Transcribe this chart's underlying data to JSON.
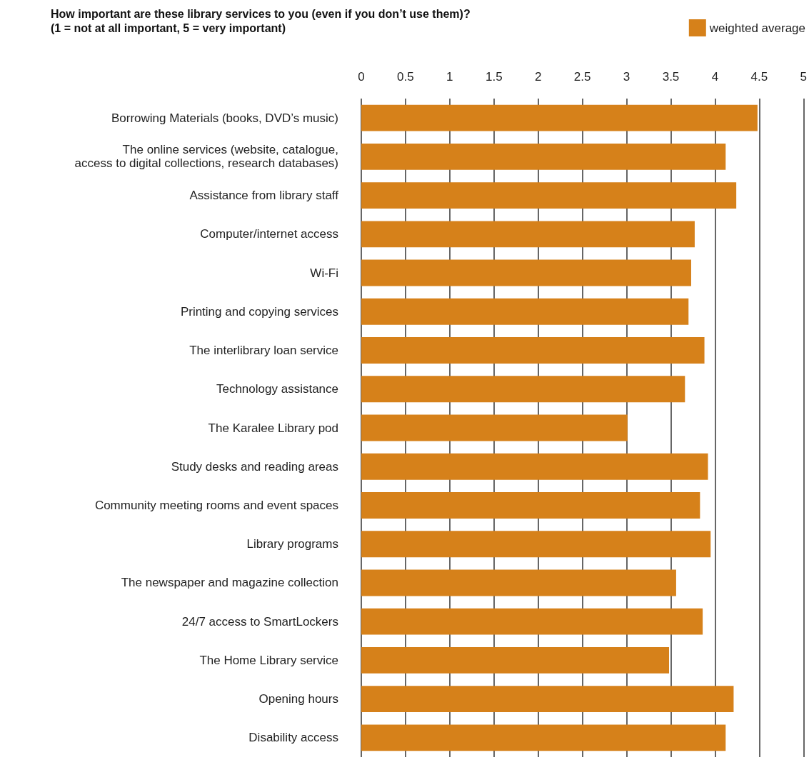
{
  "chart_data": {
    "type": "bar",
    "orientation": "horizontal",
    "title": "How important are these library services to you (even if you don’t use them)?",
    "subtitle": "(1 = not at all important, 5 = very important)",
    "categories": [
      "Borrowing Materials (books, DVD’s music)",
      "The online services (website, catalogue,\naccess to digital collections, research databases)",
      "Assistance from library staff",
      "Computer/internet access",
      "Wi-Fi",
      "Printing and copying services",
      "The interlibrary loan service",
      "Technology assistance",
      "The Karalee Library pod",
      "Study desks and reading areas",
      "Community meeting rooms and event spaces",
      "Library programs",
      "The newspaper and magazine collection",
      "24/7 access to SmartLockers",
      "The Home Library service",
      "Opening hours",
      "Disability access"
    ],
    "series": [
      {
        "name": "weighted average",
        "color": "#d6811a",
        "values": [
          4.48,
          4.12,
          4.24,
          3.77,
          3.73,
          3.7,
          3.88,
          3.66,
          3.01,
          3.92,
          3.83,
          3.95,
          3.56,
          3.86,
          3.48,
          4.21,
          4.12
        ]
      }
    ],
    "xlim": [
      0,
      5
    ],
    "xticks": [
      0,
      0.5,
      1,
      1.5,
      2,
      2.5,
      3,
      3.5,
      4,
      4.5,
      5
    ],
    "grid": "x",
    "legend": "top right"
  }
}
